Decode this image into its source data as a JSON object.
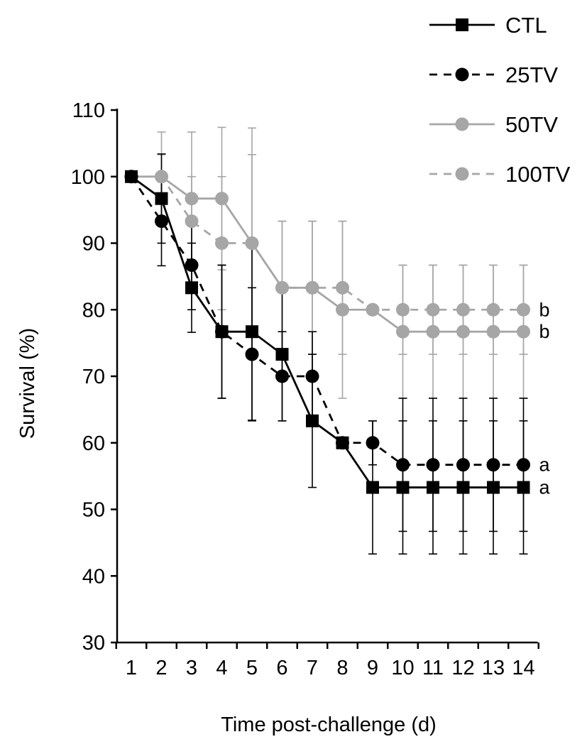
{
  "chart_data": {
    "type": "line",
    "title": "",
    "xlabel": "Time post-challenge (d)",
    "ylabel": "Survival (%)",
    "x": [
      1,
      2,
      3,
      4,
      5,
      6,
      7,
      8,
      9,
      10,
      11,
      12,
      13,
      14
    ],
    "x_tick_labels": [
      "1",
      "2",
      "3",
      "4",
      "5",
      "6",
      "7",
      "8",
      "9",
      "10",
      "11",
      "12",
      "13",
      "14"
    ],
    "ylim": [
      30,
      110
    ],
    "y_ticks": [
      30,
      40,
      50,
      60,
      70,
      80,
      90,
      100,
      110
    ],
    "y_tick_labels": [
      "30",
      "40",
      "50",
      "60",
      "70",
      "80",
      "90",
      "100",
      "110"
    ],
    "grid": false,
    "legend_position": "top-right",
    "series": [
      {
        "name": "CTL",
        "color": "#000000",
        "line_style": "solid",
        "marker": "square",
        "values": [
          100,
          96.7,
          83.3,
          76.7,
          76.7,
          73.3,
          63.3,
          60,
          53.3,
          53.3,
          53.3,
          53.3,
          53.3,
          53.3
        ],
        "errors": [
          0,
          6.7,
          6.7,
          10,
          13.3,
          10,
          10,
          null,
          10,
          10,
          10,
          10,
          10,
          10
        ],
        "significance": "a"
      },
      {
        "name": "25TV",
        "color": "#000000",
        "line_style": "dashed",
        "marker": "circle",
        "values": [
          100,
          93.3,
          86.7,
          76.7,
          73.3,
          70,
          70,
          60,
          60,
          56.7,
          56.7,
          56.7,
          56.7,
          56.7
        ],
        "errors": [
          0,
          6.7,
          6.7,
          10,
          10,
          6.7,
          6.7,
          null,
          3.3,
          10,
          10,
          10,
          10,
          10
        ],
        "significance": "a"
      },
      {
        "name": "50TV",
        "color": "#a6a6a6",
        "line_style": "solid",
        "marker": "circle",
        "values": [
          100,
          100,
          96.7,
          96.7,
          90,
          83.3,
          83.3,
          80,
          80,
          76.7,
          76.7,
          76.7,
          76.7,
          76.7
        ],
        "errors": [
          0,
          6.7,
          10,
          10.7,
          17.3,
          10,
          10,
          13.3,
          null,
          10,
          10,
          10,
          10,
          10
        ],
        "significance": "b"
      },
      {
        "name": "100TV",
        "color": "#a6a6a6",
        "line_style": "dashed",
        "marker": "circle",
        "values": [
          100,
          100,
          93.3,
          90,
          90,
          83.3,
          83.3,
          83.3,
          80,
          80,
          80,
          80,
          80,
          80
        ],
        "errors": [
          0,
          3.3,
          6.7,
          10,
          13.3,
          10,
          10,
          10,
          null,
          6.7,
          6.7,
          6.7,
          6.7,
          6.7
        ],
        "significance": "b"
      }
    ]
  }
}
